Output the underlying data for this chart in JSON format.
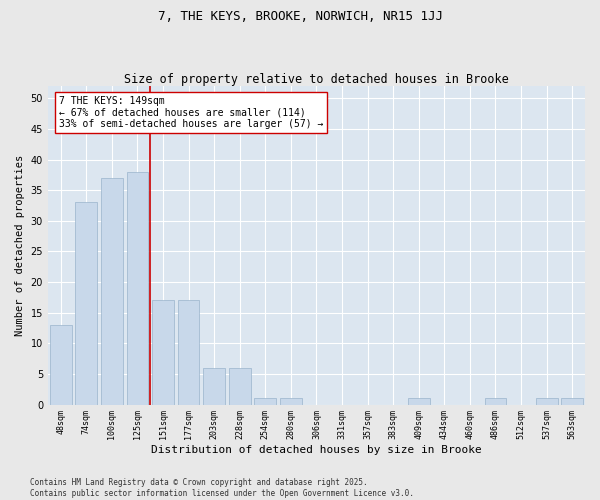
{
  "title": "7, THE KEYS, BROOKE, NORWICH, NR15 1JJ",
  "subtitle": "Size of property relative to detached houses in Brooke",
  "xlabel": "Distribution of detached houses by size in Brooke",
  "ylabel": "Number of detached properties",
  "categories": [
    "48sqm",
    "74sqm",
    "100sqm",
    "125sqm",
    "151sqm",
    "177sqm",
    "203sqm",
    "228sqm",
    "254sqm",
    "280sqm",
    "306sqm",
    "331sqm",
    "357sqm",
    "383sqm",
    "409sqm",
    "434sqm",
    "460sqm",
    "486sqm",
    "512sqm",
    "537sqm",
    "563sqm"
  ],
  "values": [
    13,
    33,
    37,
    38,
    17,
    17,
    6,
    6,
    1,
    1,
    0,
    0,
    0,
    0,
    1,
    0,
    0,
    1,
    0,
    1,
    1
  ],
  "bar_color": "#c8d8ea",
  "bar_edge_color": "#9ab4cc",
  "vline_x": 3.5,
  "vline_color": "#cc0000",
  "annotation_text": "7 THE KEYS: 149sqm\n← 67% of detached houses are smaller (114)\n33% of semi-detached houses are larger (57) →",
  "annotation_box_color": "#ffffff",
  "annotation_box_edge": "#cc0000",
  "ylim": [
    0,
    52
  ],
  "yticks": [
    0,
    5,
    10,
    15,
    20,
    25,
    30,
    35,
    40,
    45,
    50
  ],
  "bg_color": "#dce6f0",
  "grid_color": "#ffffff",
  "fig_bg_color": "#e8e8e8",
  "footer_text": "Contains HM Land Registry data © Crown copyright and database right 2025.\nContains public sector information licensed under the Open Government Licence v3.0.",
  "title_fontsize": 9,
  "subtitle_fontsize": 8.5,
  "tick_fontsize": 6,
  "ylabel_fontsize": 7.5,
  "xlabel_fontsize": 8,
  "annotation_fontsize": 7,
  "footer_fontsize": 5.5
}
